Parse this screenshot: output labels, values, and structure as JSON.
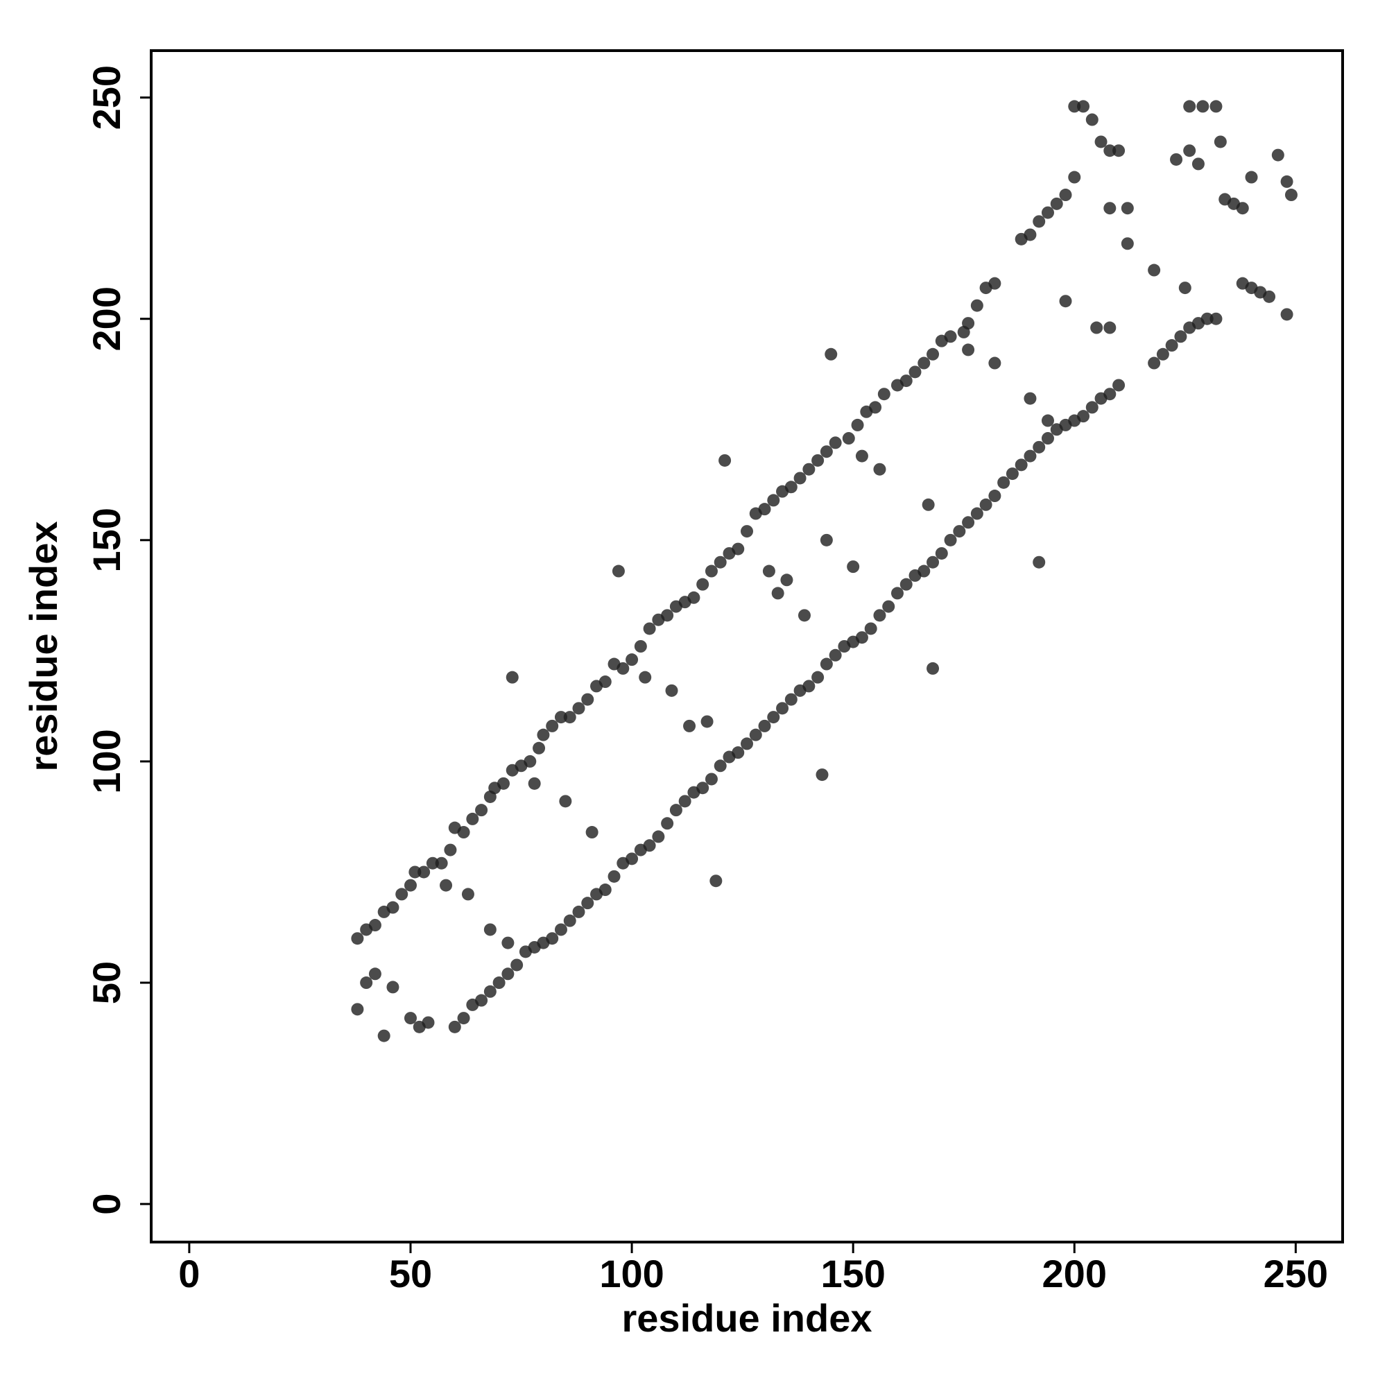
{
  "chart_data": {
    "type": "scatter",
    "xlabel": "residue index",
    "ylabel": "residue index",
    "xlim": [
      -8.6,
      260.6
    ],
    "ylim": [
      -8.6,
      260.6
    ],
    "xticks": [
      0,
      50,
      100,
      150,
      200,
      250
    ],
    "yticks": [
      0,
      50,
      100,
      150,
      200,
      250
    ],
    "color": "#1e1e1e",
    "x": [
      38,
      40,
      42,
      44,
      46,
      48,
      50,
      51,
      53,
      55,
      57,
      59,
      60,
      62,
      64,
      66,
      68,
      69,
      71,
      73,
      75,
      77,
      79,
      80,
      82,
      84,
      86,
      88,
      90,
      92,
      94,
      96,
      98,
      100,
      102,
      104,
      106,
      108,
      110,
      112,
      114,
      116,
      118,
      120,
      122,
      124,
      126,
      128,
      130,
      132,
      134,
      136,
      138,
      140,
      142,
      144,
      146,
      149,
      151,
      153,
      155,
      157,
      160,
      162,
      164,
      166,
      168,
      170,
      172,
      175,
      176,
      178,
      180,
      182,
      60,
      62,
      64,
      66,
      68,
      70,
      72,
      74,
      76,
      78,
      80,
      82,
      84,
      86,
      88,
      90,
      92,
      94,
      96,
      98,
      100,
      102,
      104,
      106,
      108,
      110,
      112,
      114,
      116,
      118,
      120,
      122,
      124,
      126,
      128,
      130,
      132,
      134,
      136,
      138,
      140,
      142,
      144,
      146,
      148,
      150,
      152,
      154,
      156,
      158,
      160,
      162,
      164,
      166,
      168,
      170,
      172,
      174,
      176,
      178,
      180,
      182,
      184,
      186,
      188,
      190,
      192,
      194,
      196,
      198,
      200,
      202,
      204,
      206,
      208,
      210,
      218,
      220,
      222,
      224,
      226,
      228,
      230,
      188,
      190,
      192,
      194,
      196,
      198,
      200,
      200,
      202,
      204,
      206,
      208,
      210,
      223,
      226,
      228,
      226,
      229,
      232,
      233,
      234,
      236,
      238,
      240,
      238,
      240,
      242,
      244,
      246,
      248,
      248,
      249,
      38,
      40,
      42,
      44,
      46,
      50,
      52,
      54,
      58,
      63,
      68,
      72,
      73,
      78,
      85,
      91,
      97,
      103,
      109,
      113,
      117,
      119,
      121,
      131,
      133,
      135,
      139,
      143,
      144,
      145,
      150,
      152,
      156,
      167,
      168,
      176,
      182,
      190,
      192,
      194,
      198,
      205,
      208,
      208,
      212,
      212,
      218,
      225,
      232
    ],
    "y": [
      60,
      62,
      63,
      66,
      67,
      70,
      72,
      75,
      75,
      77,
      77,
      80,
      85,
      84,
      87,
      89,
      92,
      94,
      95,
      98,
      99,
      100,
      103,
      106,
      108,
      110,
      110,
      112,
      114,
      117,
      118,
      122,
      121,
      123,
      126,
      130,
      132,
      133,
      135,
      136,
      137,
      140,
      143,
      145,
      147,
      148,
      152,
      156,
      157,
      159,
      161,
      162,
      164,
      166,
      168,
      170,
      172,
      173,
      176,
      179,
      180,
      183,
      185,
      186,
      188,
      190,
      192,
      195,
      196,
      197,
      199,
      203,
      207,
      208,
      40,
      42,
      45,
      46,
      48,
      50,
      52,
      54,
      57,
      58,
      59,
      60,
      62,
      64,
      66,
      68,
      70,
      71,
      74,
      77,
      78,
      80,
      81,
      83,
      86,
      89,
      91,
      93,
      94,
      96,
      99,
      101,
      102,
      104,
      106,
      108,
      110,
      112,
      114,
      116,
      117,
      119,
      122,
      124,
      126,
      127,
      128,
      130,
      133,
      135,
      138,
      140,
      142,
      143,
      145,
      147,
      150,
      152,
      154,
      156,
      158,
      160,
      163,
      165,
      167,
      169,
      171,
      173,
      175,
      176,
      177,
      178,
      180,
      182,
      183,
      185,
      190,
      192,
      194,
      196,
      198,
      199,
      200,
      218,
      219,
      222,
      224,
      226,
      228,
      232,
      248,
      248,
      245,
      240,
      238,
      238,
      236,
      238,
      235,
      248,
      248,
      248,
      240,
      227,
      226,
      225,
      232,
      208,
      207,
      206,
      205,
      237,
      231,
      201,
      228,
      44,
      50,
      52,
      38,
      49,
      42,
      40,
      41,
      72,
      70,
      62,
      59,
      119,
      95,
      91,
      84,
      143,
      119,
      116,
      108,
      109,
      73,
      168,
      143,
      138,
      141,
      133,
      97,
      150,
      192,
      144,
      169,
      166,
      158,
      121,
      193,
      190,
      182,
      145,
      177,
      204,
      198,
      198,
      225,
      225,
      217,
      211,
      207,
      200
    ]
  }
}
